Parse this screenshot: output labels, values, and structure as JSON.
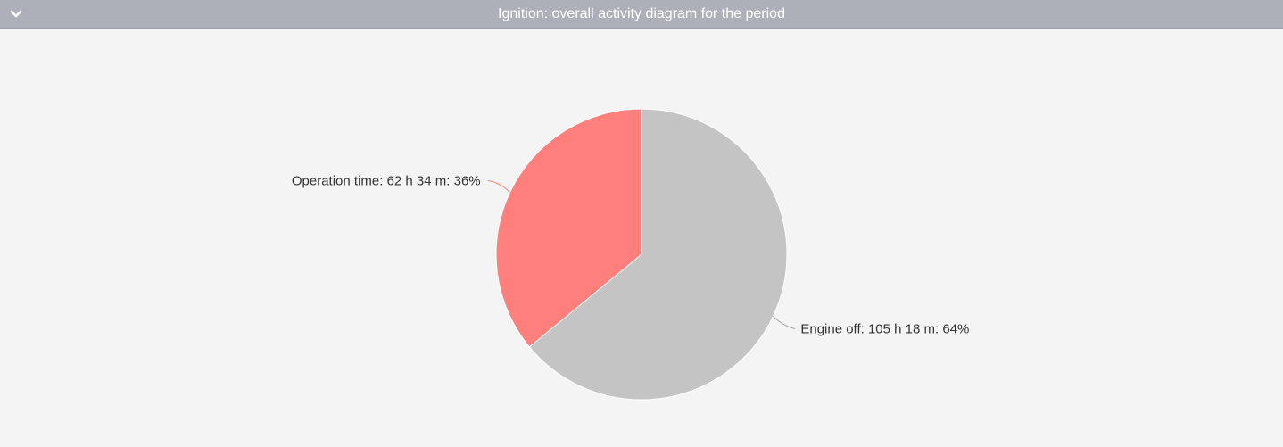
{
  "header": {
    "title": "Ignition: overall activity diagram for the period",
    "toggle_icon": "chevron-down-icon"
  },
  "colors": {
    "header_bg": "#adb0b8",
    "background": "#f4f4f4",
    "operation": "#ff7f7d",
    "engine_off": "#c4c4c4"
  },
  "chart_data": {
    "type": "pie",
    "slices": [
      {
        "name": "Operation time",
        "value": 36,
        "duration": "62 h 34 m",
        "label": "Operation time: 62 h 34 m: 36%",
        "color": "#ff7f7d"
      },
      {
        "name": "Engine off",
        "value": 64,
        "duration": "105 h 18 m",
        "label": "Engine off: 105 h 18 m: 64%",
        "color": "#c4c4c4"
      }
    ],
    "start": "top",
    "direction": "counterclockwise-from-top for first slice"
  }
}
